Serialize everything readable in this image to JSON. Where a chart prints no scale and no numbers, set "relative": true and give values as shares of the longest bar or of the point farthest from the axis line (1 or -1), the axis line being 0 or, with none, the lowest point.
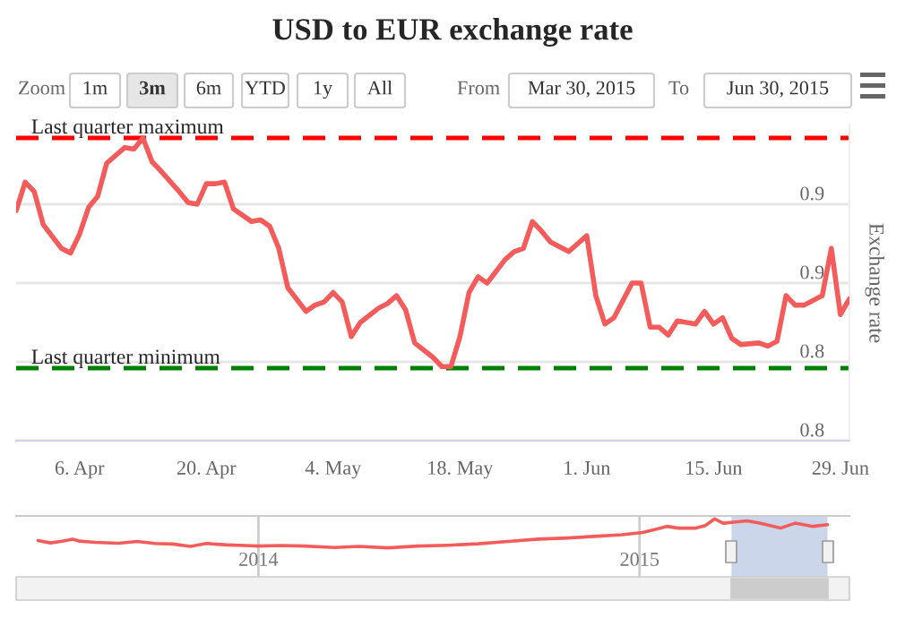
{
  "chart_data": [
    {
      "type": "line",
      "title": "USD to EUR exchange rate",
      "ylabel": "Exchange rate",
      "annotations": [
        "Zoom",
        "1m",
        "3m",
        "6m",
        "YTD",
        "1y",
        "All",
        "From",
        "Mar 30, 2015",
        "To",
        "Jun 30, 2015"
      ],
      "x": [
        "2015-03-30",
        "2015-03-31",
        "2015-04-01",
        "2015-04-02",
        "2015-04-04",
        "2015-04-05",
        "2015-04-06",
        "2015-04-07",
        "2015-04-08",
        "2015-04-09",
        "2015-04-11",
        "2015-04-12",
        "2015-04-13",
        "2015-04-14",
        "2015-04-15",
        "2015-04-17",
        "2015-04-18",
        "2015-04-19",
        "2015-04-20",
        "2015-04-21",
        "2015-04-22",
        "2015-04-23",
        "2015-04-25",
        "2015-04-26",
        "2015-04-27",
        "2015-04-28",
        "2015-04-29",
        "2015-05-01",
        "2015-05-02",
        "2015-05-03",
        "2015-05-04",
        "2015-05-05",
        "2015-05-06",
        "2015-05-07",
        "2015-05-09",
        "2015-05-10",
        "2015-05-11",
        "2015-05-12",
        "2015-05-13",
        "2015-05-15",
        "2015-05-16",
        "2015-05-17",
        "2015-05-18",
        "2015-05-19",
        "2015-05-20",
        "2015-05-21",
        "2015-05-23",
        "2015-05-24",
        "2015-05-25",
        "2015-05-26",
        "2015-05-27",
        "2015-05-28",
        "2015-05-30",
        "2015-05-31",
        "2015-06-01",
        "2015-06-02",
        "2015-06-03",
        "2015-06-04",
        "2015-06-06",
        "2015-06-07",
        "2015-06-08",
        "2015-06-09",
        "2015-06-10",
        "2015-06-11",
        "2015-06-13",
        "2015-06-14",
        "2015-06-15",
        "2015-06-16",
        "2015-06-17",
        "2015-06-18",
        "2015-06-20",
        "2015-06-21",
        "2015-06-22",
        "2015-06-23",
        "2015-06-24",
        "2015-06-25",
        "2015-06-27",
        "2015-06-28",
        "2015-06-29",
        "2015-06-30"
      ],
      "series": [
        {
          "color": "#f45b5b",
          "values": [
            0.946,
            0.964,
            0.958,
            0.937,
            0.922,
            0.919,
            0.931,
            0.948,
            0.955,
            0.976,
            0.986,
            0.985,
            0.992,
            0.977,
            0.971,
            0.958,
            0.951,
            0.95,
            0.963,
            0.963,
            0.964,
            0.947,
            0.939,
            0.94,
            0.936,
            0.922,
            0.897,
            0.882,
            0.886,
            0.888,
            0.894,
            0.888,
            0.866,
            0.875,
            0.884,
            0.887,
            0.892,
            0.883,
            0.862,
            0.853,
            0.847,
            0.847,
            0.866,
            0.894,
            0.904,
            0.9,
            0.915,
            0.92,
            0.922,
            0.939,
            0.933,
            0.926,
            0.92,
            0.925,
            0.93,
            0.892,
            0.874,
            0.878,
            0.9,
            0.9,
            0.872,
            0.872,
            0.867,
            0.876,
            0.874,
            0.882,
            0.874,
            0.878,
            0.865,
            0.861,
            0.862,
            0.86,
            0.863,
            0.892,
            0.886,
            0.886,
            0.892,
            0.922,
            0.88,
            0.89
          ]
        }
      ],
      "xlim": [
        "2015-03-30",
        "2015-06-30"
      ],
      "xticks": [
        {
          "value": "2015-04-06",
          "label": "6. Apr"
        },
        {
          "value": "2015-04-20",
          "label": "20. Apr"
        },
        {
          "value": "2015-05-04",
          "label": "4. May"
        },
        {
          "value": "2015-05-18",
          "label": "18. May"
        },
        {
          "value": "2015-06-01",
          "label": "1. Jun"
        },
        {
          "value": "2015-06-15",
          "label": "15. Jun"
        },
        {
          "value": "2015-06-29",
          "label": "29. Jun"
        }
      ],
      "ylim": [
        0.8,
        1.0
      ],
      "yticks": [
        {
          "value": 0.8,
          "label": "0.8"
        },
        {
          "value": 0.85,
          "label": "0.8"
        },
        {
          "value": 0.9,
          "label": "0.9"
        },
        {
          "value": 0.95,
          "label": "0.9"
        }
      ],
      "ref_lines": [
        {
          "axis": "y",
          "value": 0.992,
          "label": "Last quarter maximum",
          "color": "#ff0000",
          "line_style": "dashed"
        },
        {
          "axis": "y",
          "value": 0.846,
          "label": "Last quarter minimum",
          "color": "#008000",
          "line_style": "dashed"
        }
      ],
      "grid": "y",
      "legend": false
    },
    {
      "type": "line",
      "relative": true,
      "x": [
        "2013-06-04",
        "2013-06-16",
        "2013-06-27",
        "2013-07-07",
        "2013-07-14",
        "2013-07-29",
        "2013-08-20",
        "2013-09-07",
        "2013-09-24",
        "2013-10-11",
        "2013-10-28",
        "2013-11-12",
        "2013-12-02",
        "2013-12-19",
        "2014-01-01",
        "2014-01-22",
        "2014-02-14",
        "2014-03-15",
        "2014-04-07",
        "2014-05-05",
        "2014-06-03",
        "2014-07-02",
        "2014-07-30",
        "2014-08-28",
        "2014-09-26",
        "2014-10-24",
        "2014-11-22",
        "2014-12-15",
        "2015-01-04",
        "2015-01-18",
        "2015-01-27",
        "2015-02-07",
        "2015-02-24",
        "2015-03-05",
        "2015-03-14",
        "2015-03-22",
        "2015-04-03",
        "2015-04-14",
        "2015-04-26",
        "2015-05-16",
        "2015-05-30",
        "2015-06-16",
        "2015-06-30"
      ],
      "series": [
        {
          "color": "#f45b5b",
          "values": [
            0.25,
            0.17,
            0.23,
            0.3,
            0.23,
            0.19,
            0.16,
            0.22,
            0.15,
            0.13,
            0.05,
            0.15,
            0.1,
            0.08,
            0.06,
            0.08,
            0.06,
            0.01,
            0.05,
            0,
            0.06,
            0.09,
            0.14,
            0.22,
            0.3,
            0.34,
            0.4,
            0.45,
            0.53,
            0.65,
            0.74,
            0.68,
            0.68,
            0.77,
            1,
            0.85,
            0.89,
            0.93,
            0.85,
            0.68,
            0.85,
            0.74,
            0.8
          ]
        }
      ],
      "xlim": [
        "2013-05-14",
        "2015-07-21"
      ],
      "xticks": [
        {
          "value": "2014-01-01",
          "label": "2014"
        },
        {
          "value": "2015-01-01",
          "label": "2015"
        }
      ],
      "bands": [
        {
          "axis": "x",
          "from": "2015-03-30",
          "to": "2015-06-30",
          "color": "#ccd6eb"
        }
      ],
      "grid": "x",
      "tick_labels": "x",
      "legend": false
    }
  ]
}
